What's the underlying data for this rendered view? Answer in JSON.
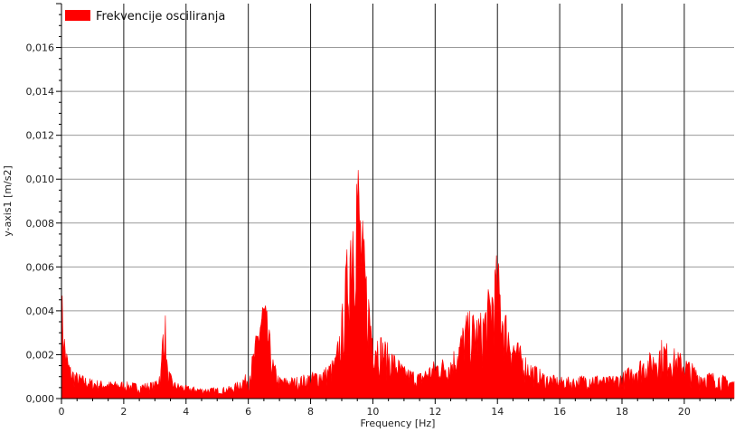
{
  "chart_data": {
    "type": "area",
    "title": "",
    "xlabel": "Frequency [Hz]",
    "ylabel": "y-axis1 [m/s2]",
    "xlim": [
      0,
      21.6
    ],
    "ylim": [
      0,
      0.018
    ],
    "x_ticks": [
      0,
      2,
      4,
      6,
      8,
      10,
      12,
      14,
      16,
      18,
      20
    ],
    "x_tick_labels": [
      "0",
      "2",
      "4",
      "6",
      "8",
      "10",
      "12",
      "14",
      "16",
      "18",
      "20"
    ],
    "y_ticks": [
      0,
      0.002,
      0.004,
      0.006,
      0.008,
      0.01,
      0.012,
      0.014,
      0.016
    ],
    "y_tick_labels": [
      "0,000",
      "0,002",
      "0,004",
      "0,006",
      "0,008",
      "0,010",
      "0,012",
      "0,014",
      "0,016"
    ],
    "grid": true,
    "legend_position": "top-left",
    "series": [
      {
        "name": "Frekvencije osciliranja",
        "color": "#ff0000",
        "x": [
          0,
          0.05,
          0.1,
          0.2,
          0.3,
          0.5,
          0.8,
          1.0,
          1.5,
          2.0,
          2.5,
          3.0,
          3.2,
          3.3,
          3.4,
          3.6,
          4.0,
          4.5,
          5.0,
          5.5,
          5.8,
          6.0,
          6.2,
          6.4,
          6.5,
          6.6,
          6.8,
          7.0,
          7.5,
          8.0,
          8.5,
          8.8,
          9.0,
          9.2,
          9.3,
          9.4,
          9.5,
          9.6,
          9.8,
          10.0,
          10.5,
          11.0,
          11.5,
          12.0,
          12.5,
          12.8,
          13.0,
          13.5,
          13.8,
          14.0,
          14.2,
          14.5,
          15.0,
          15.5,
          16.0,
          16.5,
          17.0,
          17.5,
          18.0,
          18.5,
          19.0,
          19.3,
          19.5,
          20.0,
          20.5,
          21.0,
          21.6
        ],
        "y": [
          0.0052,
          0.0045,
          0.003,
          0.002,
          0.0015,
          0.0012,
          0.001,
          0.0009,
          0.0008,
          0.0008,
          0.0007,
          0.0008,
          0.0015,
          0.0053,
          0.0015,
          0.0008,
          0.0006,
          0.0005,
          0.0005,
          0.0006,
          0.001,
          0.0012,
          0.0025,
          0.0045,
          0.005,
          0.004,
          0.0018,
          0.001,
          0.001,
          0.0012,
          0.0015,
          0.002,
          0.004,
          0.0075,
          0.0095,
          0.011,
          0.0122,
          0.0095,
          0.006,
          0.0035,
          0.0025,
          0.0015,
          0.0012,
          0.0018,
          0.002,
          0.003,
          0.004,
          0.004,
          0.0055,
          0.0068,
          0.0045,
          0.003,
          0.0018,
          0.0012,
          0.001,
          0.001,
          0.0012,
          0.001,
          0.0012,
          0.0018,
          0.0022,
          0.0028,
          0.0025,
          0.002,
          0.0013,
          0.0012,
          0.0009
        ]
      }
    ]
  }
}
